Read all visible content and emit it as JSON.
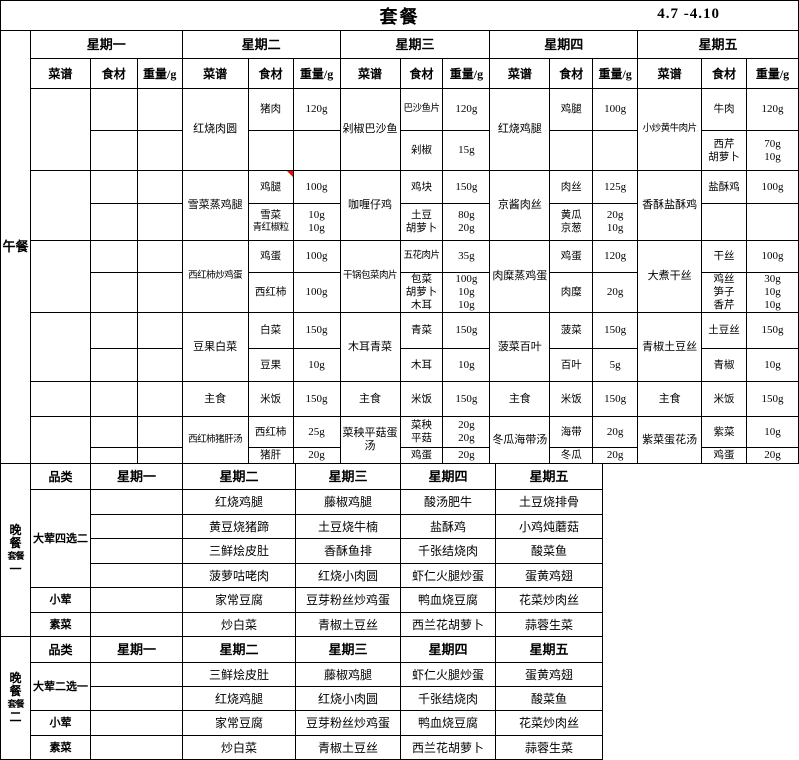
{
  "title": "套餐",
  "date_range": "4.7 -4.10",
  "colors": {
    "background": "#ffffff",
    "text": "#000000",
    "border": "#000000",
    "sub_border": "#808080",
    "comment_marker": "#ff0000"
  },
  "lunch": {
    "section_label": "午餐",
    "day_headers": [
      "星期一",
      "星期二",
      "星期三",
      "星期四",
      "星期五"
    ],
    "sub_headers": [
      "菜谱",
      "食材",
      "重量/g"
    ],
    "rows": [
      {
        "cells": [
          {
            "dish": "",
            "subs": [
              {
                "ing": [],
                "wt": []
              },
              {
                "ing": [],
                "wt": []
              }
            ]
          },
          {
            "dish": "红烧肉圆",
            "subs": [
              {
                "ing": [
                  "猪肉"
                ],
                "wt": [
                  "120g"
                ]
              },
              {
                "ing": [],
                "wt": []
              }
            ]
          },
          {
            "dish": "剁椒巴沙鱼",
            "subs": [
              {
                "ing": [
                  "巴沙鱼片"
                ],
                "wt": [
                  "120g"
                ]
              },
              {
                "ing": [
                  "剁椒"
                ],
                "wt": [
                  "15g"
                ]
              }
            ]
          },
          {
            "dish": "红烧鸡腿",
            "subs": [
              {
                "ing": [
                  "鸡腿"
                ],
                "wt": [
                  "100g"
                ]
              },
              {
                "ing": [],
                "wt": []
              }
            ]
          },
          {
            "dish": "小炒黄牛肉片",
            "subs": [
              {
                "ing": [
                  "牛肉"
                ],
                "wt": [
                  "120g"
                ]
              },
              {
                "ing": [
                  "西芹",
                  "胡萝卜"
                ],
                "wt": [
                  "70g",
                  "10g"
                ]
              }
            ]
          }
        ]
      },
      {
        "cells": [
          {
            "dish": "",
            "subs": [
              {
                "ing": [],
                "wt": []
              },
              {
                "ing": [],
                "wt": []
              }
            ]
          },
          {
            "dish": "雪菜蒸鸡腿",
            "subs": [
              {
                "ing": [
                  "鸡腿"
                ],
                "wt": [
                  "100g"
                ],
                "note": true
              },
              {
                "ing": [
                  "雪菜",
                  "青红椒粒"
                ],
                "wt": [
                  "10g",
                  "10g"
                ]
              }
            ]
          },
          {
            "dish": "咖喱仔鸡",
            "subs": [
              {
                "ing": [
                  "鸡块"
                ],
                "wt": [
                  "150g"
                ]
              },
              {
                "ing": [
                  "土豆",
                  "胡萝卜"
                ],
                "wt": [
                  "80g",
                  "20g"
                ]
              }
            ]
          },
          {
            "dish": "京酱肉丝",
            "subs": [
              {
                "ing": [
                  "肉丝"
                ],
                "wt": [
                  "125g"
                ]
              },
              {
                "ing": [
                  "黄瓜",
                  "京葱"
                ],
                "wt": [
                  "20g",
                  "10g"
                ]
              }
            ]
          },
          {
            "dish": "香酥盐酥鸡",
            "subs": [
              {
                "ing": [
                  "盐酥鸡"
                ],
                "wt": [
                  "100g"
                ]
              },
              {
                "ing": [],
                "wt": []
              }
            ]
          }
        ]
      },
      {
        "cells": [
          {
            "dish": "",
            "subs": [
              {
                "ing": [],
                "wt": []
              },
              {
                "ing": [],
                "wt": []
              }
            ]
          },
          {
            "dish": "西红柿炒鸡蛋",
            "subs": [
              {
                "ing": [
                  "鸡蛋"
                ],
                "wt": [
                  "100g"
                ]
              },
              {
                "ing": [
                  "西红柿"
                ],
                "wt": [
                  "100g"
                ]
              }
            ]
          },
          {
            "dish": "干锅包菜肉片",
            "subs": [
              {
                "ing": [
                  "五花肉片"
                ],
                "wt": [
                  "35g"
                ]
              },
              {
                "ing": [
                  "包菜",
                  "胡萝卜",
                  "木耳"
                ],
                "wt": [
                  "100g",
                  "10g",
                  "10g"
                ]
              }
            ]
          },
          {
            "dish": "肉糜蒸鸡蛋",
            "subs": [
              {
                "ing": [
                  "鸡蛋"
                ],
                "wt": [
                  "120g"
                ]
              },
              {
                "ing": [
                  "肉糜"
                ],
                "wt": [
                  "20g"
                ]
              }
            ]
          },
          {
            "dish": "大煮干丝",
            "subs": [
              {
                "ing": [
                  "干丝"
                ],
                "wt": [
                  "100g"
                ]
              },
              {
                "ing": [
                  "鸡丝",
                  "笋子",
                  "香芹"
                ],
                "wt": [
                  "30g",
                  "10g",
                  "10g"
                ]
              }
            ]
          }
        ]
      },
      {
        "cells": [
          {
            "dish": "",
            "subs": [
              {
                "ing": [],
                "wt": []
              },
              {
                "ing": [],
                "wt": []
              }
            ]
          },
          {
            "dish": "豆果白菜",
            "subs": [
              {
                "ing": [
                  "白菜"
                ],
                "wt": [
                  "150g"
                ]
              },
              {
                "ing": [
                  "豆果"
                ],
                "wt": [
                  "10g"
                ]
              }
            ]
          },
          {
            "dish": "木耳青菜",
            "subs": [
              {
                "ing": [
                  "青菜"
                ],
                "wt": [
                  "150g"
                ]
              },
              {
                "ing": [
                  "木耳"
                ],
                "wt": [
                  "10g"
                ]
              }
            ]
          },
          {
            "dish": "菠菜百叶",
            "subs": [
              {
                "ing": [
                  "菠菜"
                ],
                "wt": [
                  "150g"
                ]
              },
              {
                "ing": [
                  "百叶"
                ],
                "wt": [
                  "5g"
                ]
              }
            ]
          },
          {
            "dish": "青椒土豆丝",
            "subs": [
              {
                "ing": [
                  "土豆丝"
                ],
                "wt": [
                  "150g"
                ]
              },
              {
                "ing": [
                  "青椒"
                ],
                "wt": [
                  "10g"
                ]
              }
            ]
          }
        ]
      },
      {
        "cells": [
          {
            "dish": "",
            "subs": [
              {
                "ing": [],
                "wt": []
              }
            ]
          },
          {
            "dish": "主食",
            "subs": [
              {
                "ing": [
                  "米饭"
                ],
                "wt": [
                  "150g"
                ]
              }
            ]
          },
          {
            "dish": "主食",
            "subs": [
              {
                "ing": [
                  "米饭"
                ],
                "wt": [
                  "150g"
                ]
              }
            ]
          },
          {
            "dish": "主食",
            "subs": [
              {
                "ing": [
                  "米饭"
                ],
                "wt": [
                  "150g"
                ]
              }
            ]
          },
          {
            "dish": "主食",
            "subs": [
              {
                "ing": [
                  "米饭"
                ],
                "wt": [
                  "150g"
                ]
              }
            ]
          }
        ]
      },
      {
        "cells": [
          {
            "dish": "",
            "subs": [
              {
                "ing": [],
                "wt": []
              },
              {
                "ing": [],
                "wt": []
              }
            ]
          },
          {
            "dish": "西红柿猪肝汤",
            "subs": [
              {
                "ing": [
                  "西红柿"
                ],
                "wt": [
                  "25g"
                ]
              },
              {
                "ing": [
                  "猪肝"
                ],
                "wt": [
                  "20g"
                ]
              }
            ]
          },
          {
            "dish": "菜秧平菇蛋\n汤",
            "subs": [
              {
                "ing": [
                  "菜秧",
                  "平菇"
                ],
                "wt": [
                  "20g",
                  "20g"
                ]
              },
              {
                "ing": [
                  "鸡蛋"
                ],
                "wt": [
                  "20g"
                ]
              }
            ]
          },
          {
            "dish": "冬瓜海带汤",
            "subs": [
              {
                "ing": [
                  "海带"
                ],
                "wt": [
                  "20g"
                ]
              },
              {
                "ing": [
                  "冬瓜"
                ],
                "wt": [
                  "20g"
                ]
              }
            ]
          },
          {
            "dish": "紫菜蛋花汤",
            "subs": [
              {
                "ing": [
                  "紫菜"
                ],
                "wt": [
                  "10g"
                ]
              },
              {
                "ing": [
                  "鸡蛋"
                ],
                "wt": [
                  "20g"
                ]
              }
            ]
          }
        ]
      }
    ]
  },
  "dinner1": {
    "section_label": "晚餐套餐一",
    "category_header": "品类",
    "day_headers": [
      "星期一",
      "星期二",
      "星期三",
      "星期四",
      "星期五"
    ],
    "groups": [
      {
        "category": "大荤四选二",
        "rows": [
          [
            "",
            "红烧鸡腿",
            "藤椒鸡腿",
            "酸汤肥牛",
            "土豆烧排骨"
          ],
          [
            "",
            "黄豆烧猪蹄",
            "土豆烧牛楠",
            "盐酥鸡",
            "小鸡炖蘑菇"
          ],
          [
            "",
            "三鲜烩皮肚",
            "香酥鱼排",
            "千张结烧肉",
            "酸菜鱼"
          ],
          [
            "",
            "菠萝咕咾肉",
            "红烧小肉圆",
            "虾仁火腿炒蛋",
            "蛋黄鸡翅"
          ]
        ]
      },
      {
        "category": "小荤",
        "rows": [
          [
            "",
            "家常豆腐",
            "豆芽粉丝炒鸡蛋",
            "鸭血烧豆腐",
            "花菜炒肉丝"
          ]
        ]
      },
      {
        "category": "素菜",
        "rows": [
          [
            "",
            "炒白菜",
            "青椒土豆丝",
            "西兰花胡萝卜",
            "蒜蓉生菜"
          ]
        ]
      }
    ]
  },
  "dinner2": {
    "section_label": "晚餐套餐二",
    "category_header": "品类",
    "day_headers": [
      "星期一",
      "星期二",
      "星期三",
      "星期四",
      "星期五"
    ],
    "groups": [
      {
        "category": "大荤二选一",
        "rows": [
          [
            "",
            "三鲜烩皮肚",
            "藤椒鸡腿",
            "虾仁火腿炒蛋",
            "蛋黄鸡翅"
          ],
          [
            "",
            "红烧鸡腿",
            "红烧小肉圆",
            "千张结烧肉",
            "酸菜鱼"
          ]
        ]
      },
      {
        "category": "小荤",
        "rows": [
          [
            "",
            "家常豆腐",
            "豆芽粉丝炒鸡蛋",
            "鸭血烧豆腐",
            "花菜炒肉丝"
          ]
        ]
      },
      {
        "category": "素菜",
        "rows": [
          [
            "",
            "炒白菜",
            "青椒土豆丝",
            "西兰花胡萝卜",
            "蒜蓉生菜"
          ]
        ]
      }
    ]
  }
}
